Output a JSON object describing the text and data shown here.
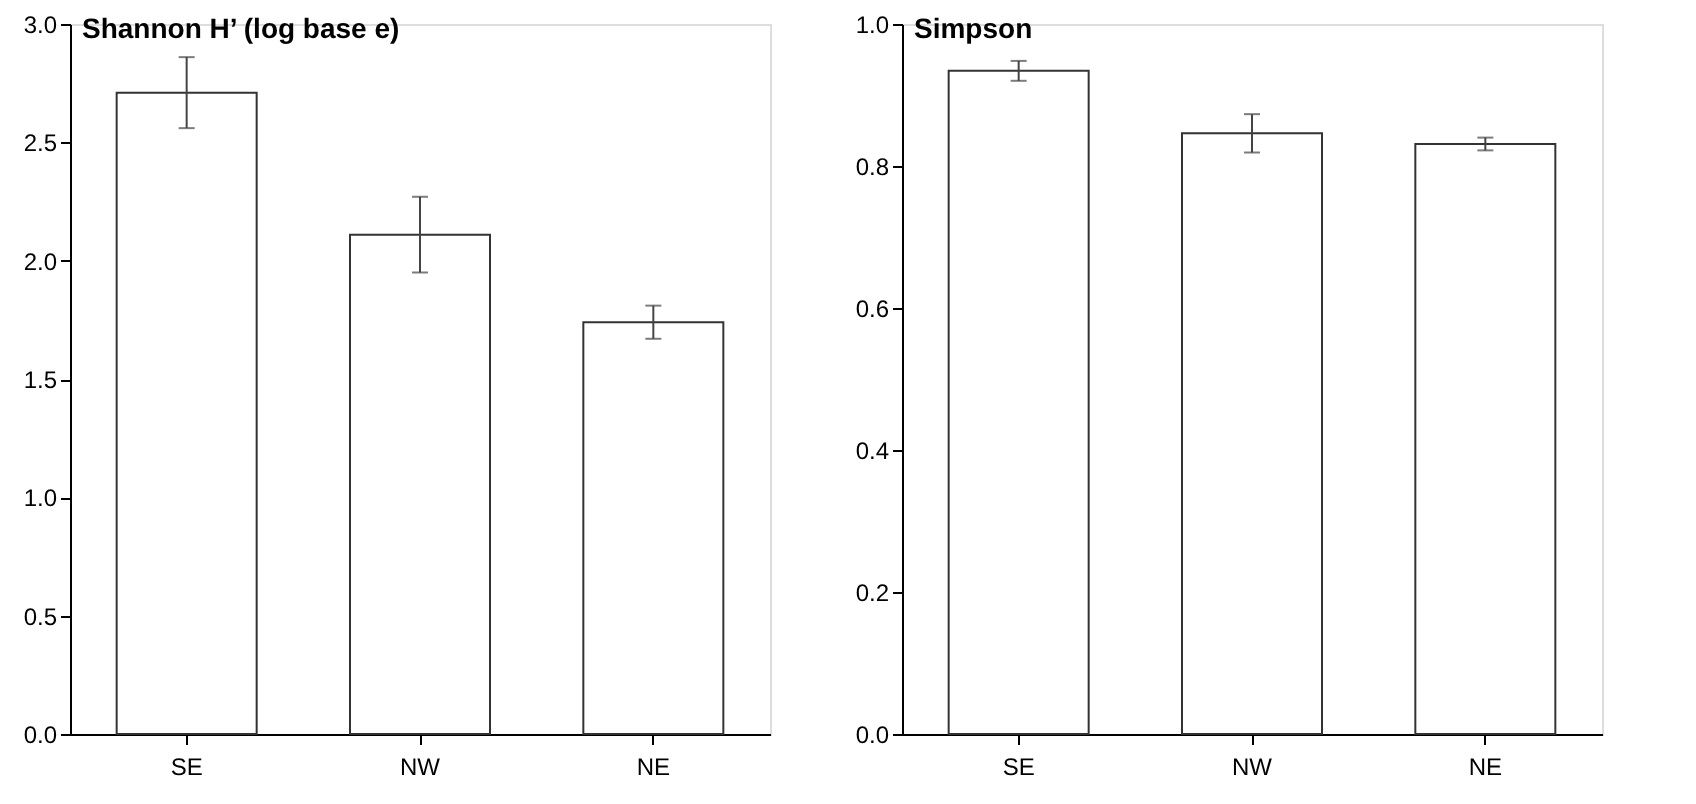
{
  "chart_data": [
    {
      "type": "bar",
      "title": "Shannon H’ (log base e)",
      "categories": [
        "SE",
        "NW",
        "NE"
      ],
      "values": [
        2.71,
        2.11,
        1.74
      ],
      "errors": [
        0.15,
        0.16,
        0.07
      ],
      "color": "#ffffff",
      "ylim": [
        0,
        3.0
      ],
      "yticks": [
        {
          "value": 0,
          "label": "0.0"
        },
        0.5,
        {
          "value": 1,
          "label": "1.0"
        },
        1.5,
        {
          "value": 2,
          "label": "2.0"
        },
        2.5,
        {
          "value": 3,
          "label": "3.0"
        }
      ],
      "grid": false
    },
    {
      "type": "bar",
      "title": "Simpson",
      "categories": [
        "SE",
        "NW",
        "NE"
      ],
      "values": [
        0.934,
        0.846,
        0.831
      ],
      "errors": [
        0.014,
        0.027,
        0.009
      ],
      "color": "#ffffff",
      "ylim": [
        0,
        1.0
      ],
      "yticks": [
        {
          "value": 0,
          "label": "0.0"
        },
        0.2,
        0.4,
        0.6,
        0.8,
        {
          "value": 1,
          "label": "1.0"
        }
      ],
      "grid": false
    }
  ]
}
